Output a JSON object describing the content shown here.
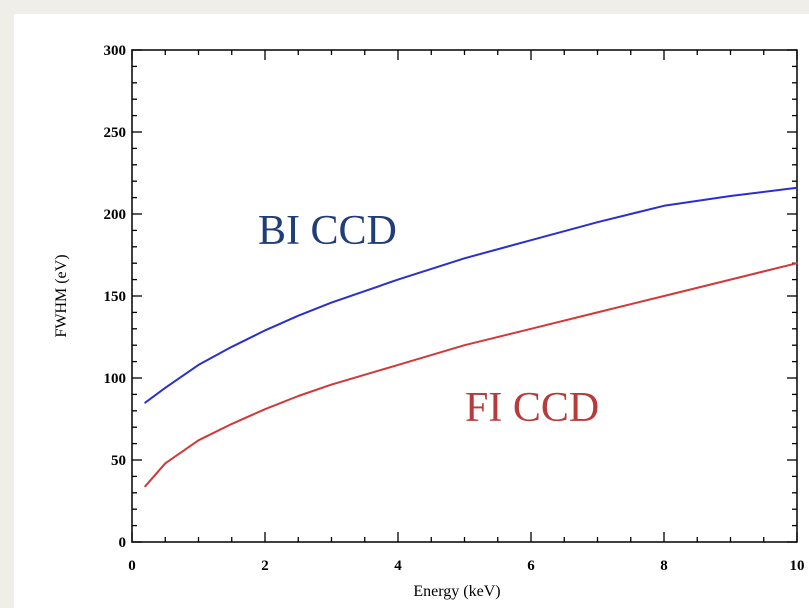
{
  "chart_data": {
    "type": "line",
    "xlabel": "Energy (keV)",
    "ylabel": "FWHM (eV)",
    "xlim": [
      0,
      10
    ],
    "ylim": [
      0,
      300
    ],
    "xticks": [
      0,
      2,
      4,
      6,
      8,
      10
    ],
    "yticks": [
      0,
      50,
      100,
      150,
      200,
      250,
      300
    ],
    "grid": false,
    "legend": "none",
    "series": [
      {
        "name": "BI CCD",
        "color": "#2a2fcf",
        "label_color": "#1f3d78",
        "x": [
          0.2,
          0.5,
          1,
          1.5,
          2,
          2.5,
          3,
          4,
          5,
          6,
          7,
          8,
          9,
          10
        ],
        "y": [
          85,
          94,
          108,
          119,
          129,
          138,
          146,
          160,
          173,
          184,
          195,
          205,
          211,
          216
        ]
      },
      {
        "name": "FI CCD",
        "color": "#d23838",
        "label_color": "#b83a3a",
        "x": [
          0.2,
          0.5,
          1,
          1.5,
          2,
          2.5,
          3,
          4,
          5,
          6,
          7,
          8,
          9,
          10
        ],
        "y": [
          34,
          48,
          62,
          72,
          81,
          89,
          96,
          108,
          120,
          130,
          140,
          150,
          160,
          170
        ]
      }
    ]
  }
}
